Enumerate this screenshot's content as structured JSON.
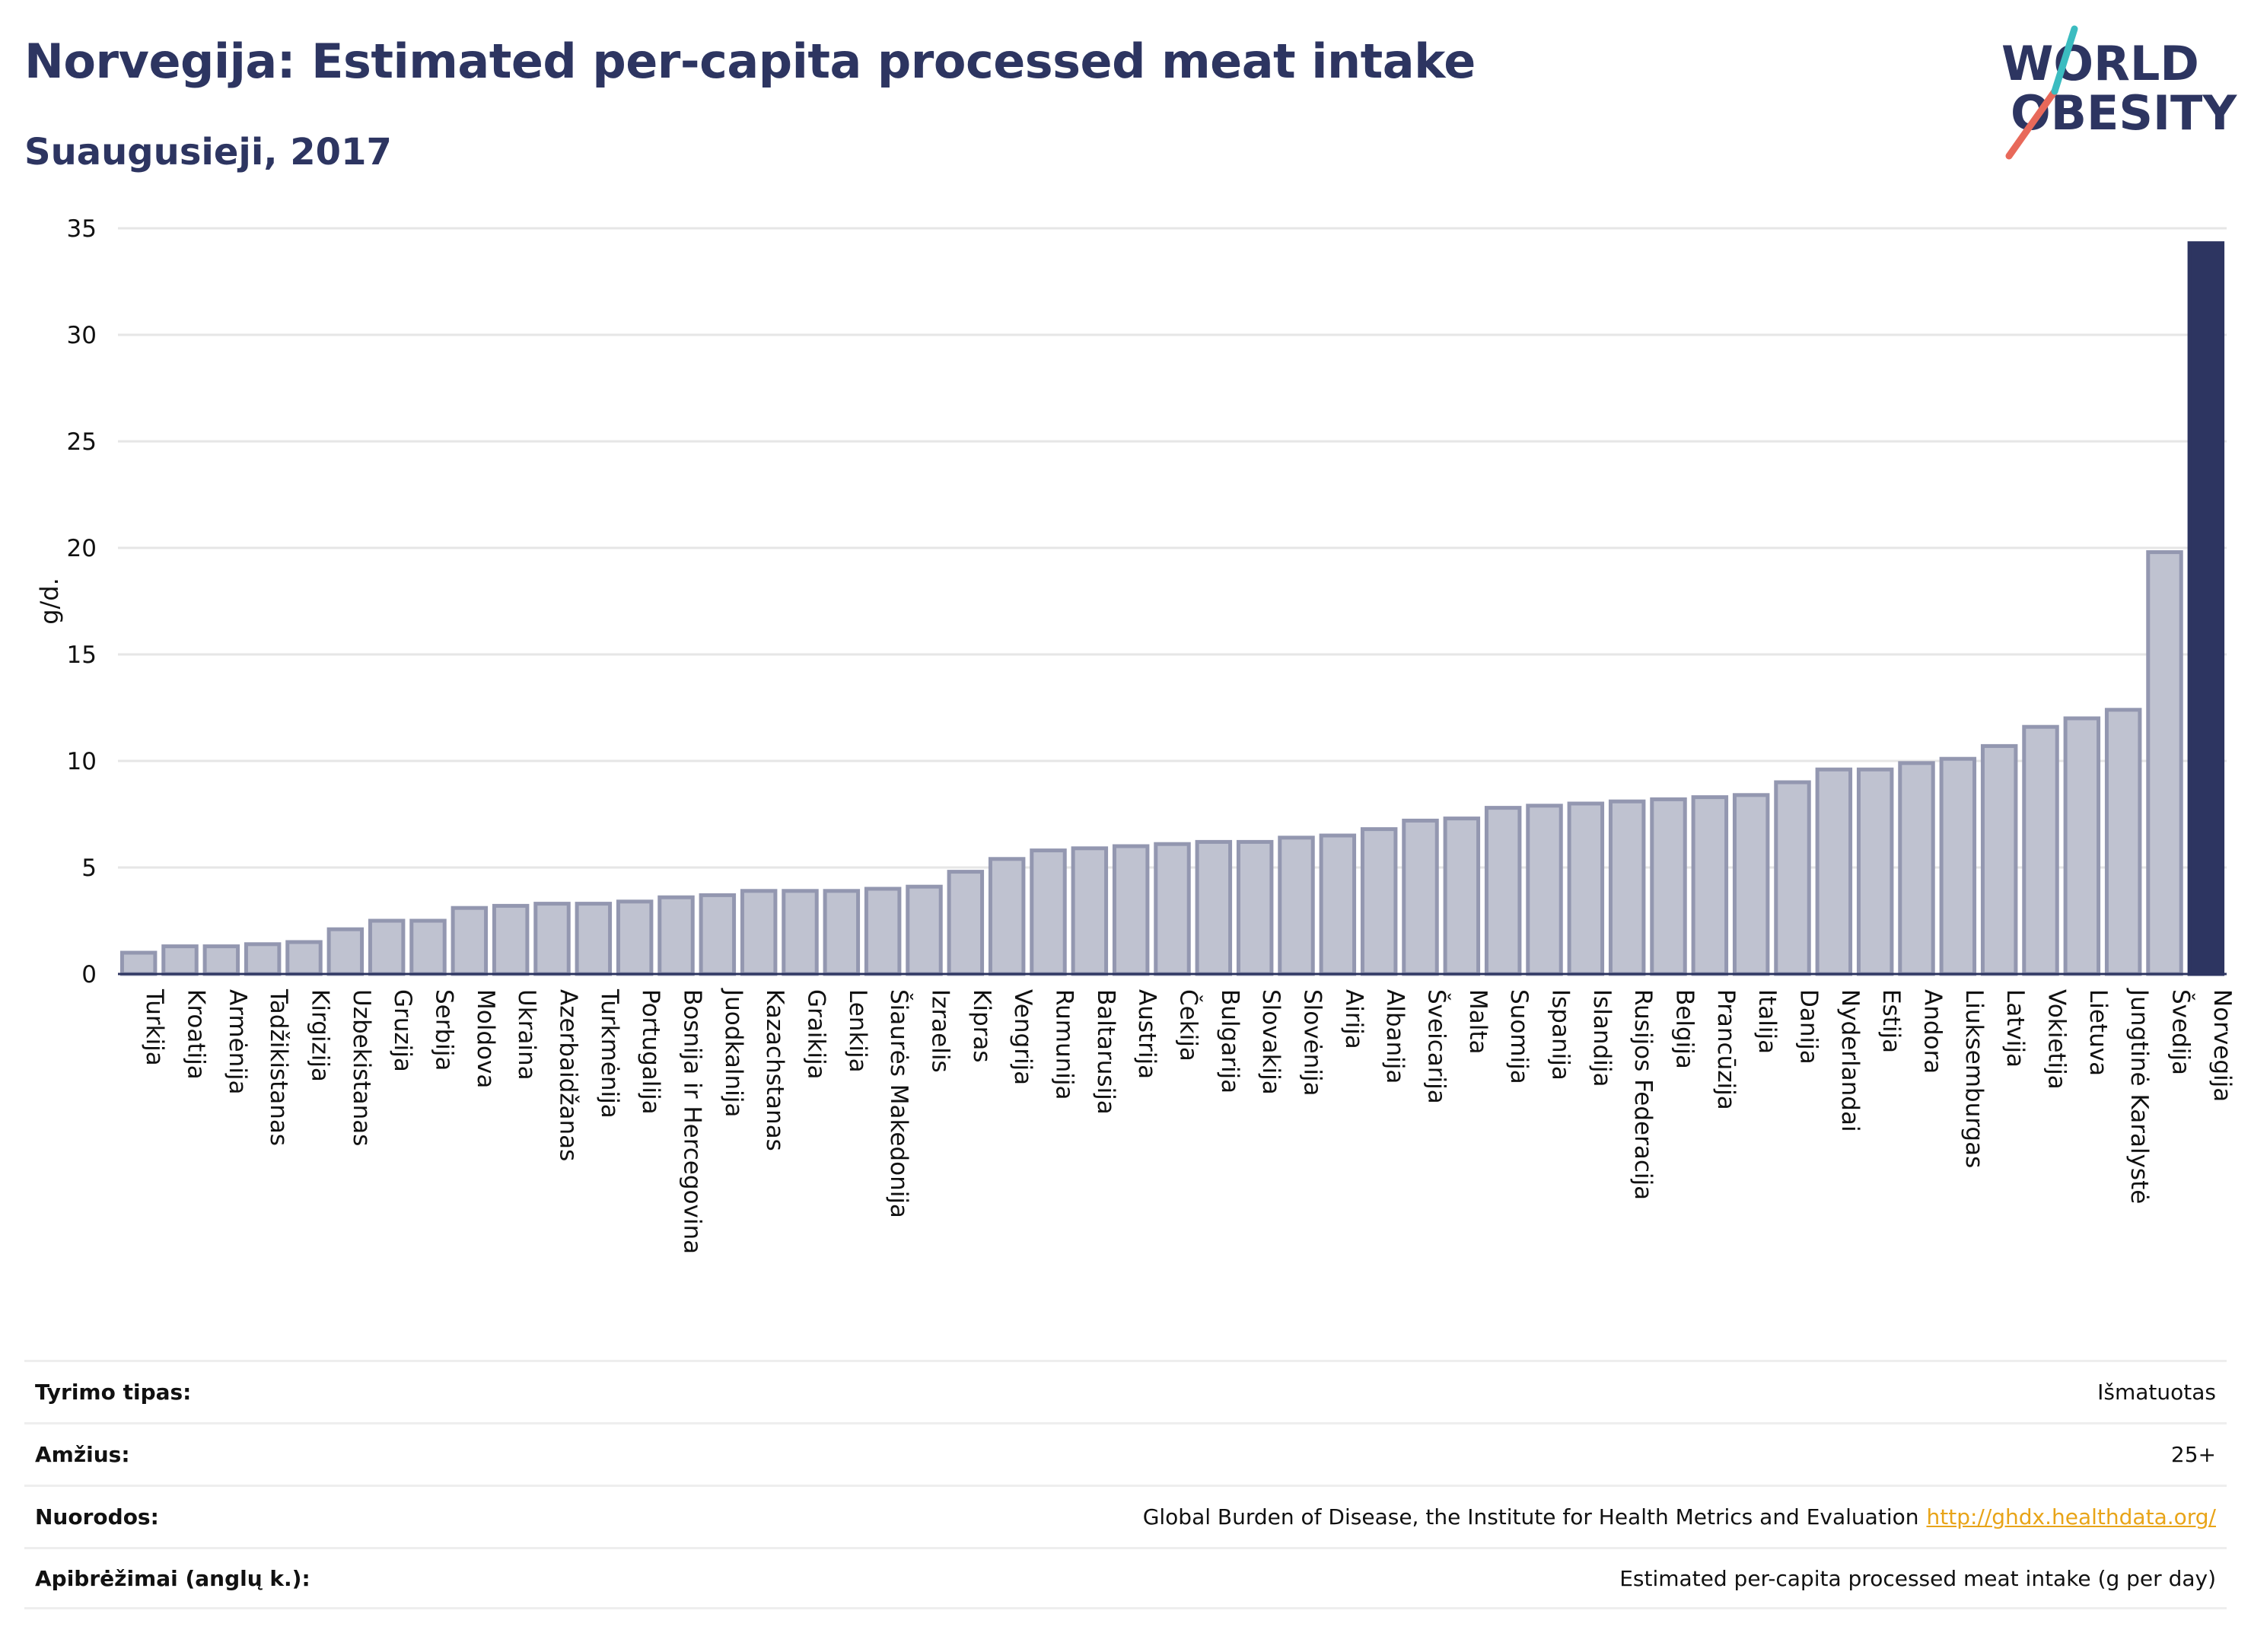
{
  "title": "Norvegija: Estimated per-capita processed meat intake",
  "subtitle": "Suaugusieji, 2017",
  "logo": {
    "line1": "WORLD",
    "line2": "OBESITY",
    "colors": {
      "text": "#2d3561",
      "slash_red": "#e8695a",
      "slash_teal": "#3bbcc0"
    }
  },
  "colors": {
    "bar_fill": "#bfc2d0",
    "bar_stroke": "#9397b0",
    "highlight_bar": "#2d3561",
    "grid": "#e6e6e6",
    "title": "#2d3561",
    "link": "#e8a418"
  },
  "chart_data": {
    "type": "bar",
    "ylabel": "g/d.",
    "xlabel": "",
    "ylim": [
      0,
      35
    ],
    "yticks": [
      0,
      5,
      10,
      15,
      20,
      25,
      30,
      35
    ],
    "grid": true,
    "highlight": "Norvegija",
    "categories": [
      "Turkija",
      "Kroatija",
      "Armėnija",
      "Tadžikistanas",
      "Kirgizija",
      "Uzbekistanas",
      "Gruzija",
      "Serbija",
      "Moldova",
      "Ukraina",
      "Azerbaidžanas",
      "Turkmėnija",
      "Portugalija",
      "Bosnija ir Hercegovina",
      "Juodkalnija",
      "Kazachstanas",
      "Graikija",
      "Lenkija",
      "Šiaurės Makedonija",
      "Izraelis",
      "Kipras",
      "Vengrija",
      "Rumunija",
      "Baltarusija",
      "Austrija",
      "Čekija",
      "Bulgarija",
      "Slovakija",
      "Slovėnija",
      "Airija",
      "Albanija",
      "Šveicarija",
      "Malta",
      "Suomija",
      "Ispanija",
      "Islandija",
      "Rusijos Federacija",
      "Belgija",
      "Prancūzija",
      "Italija",
      "Danija",
      "Nyderlandai",
      "Estija",
      "Andora",
      "Liuksemburgas",
      "Latvija",
      "Vokietija",
      "Lietuva",
      "Jungtinė Karalystė",
      "Švedija",
      "Norvegija"
    ],
    "values": [
      1.0,
      1.3,
      1.3,
      1.4,
      1.5,
      2.1,
      2.5,
      2.5,
      3.1,
      3.2,
      3.3,
      3.3,
      3.4,
      3.6,
      3.7,
      3.9,
      3.9,
      3.9,
      4.0,
      4.1,
      4.8,
      5.4,
      5.8,
      5.9,
      6.0,
      6.1,
      6.2,
      6.2,
      6.4,
      6.5,
      6.8,
      7.2,
      7.3,
      7.8,
      7.9,
      8.0,
      8.1,
      8.2,
      8.3,
      8.4,
      9.0,
      9.6,
      9.6,
      9.9,
      10.1,
      10.7,
      11.6,
      12.0,
      12.4,
      19.8,
      34.3
    ]
  },
  "meta": [
    {
      "label": "Tyrimo tipas:",
      "value": "Išmatuotas"
    },
    {
      "label": "Amžius:",
      "value": "25+"
    },
    {
      "label": "Nuorodos:",
      "value": "Global Burden of Disease, the Institute for Health Metrics and Evaluation",
      "link": "http://ghdx.healthdata.org/"
    },
    {
      "label": "Apibrėžimai (anglų k.):",
      "value": "Estimated per-capita processed meat intake (g per day)"
    }
  ]
}
